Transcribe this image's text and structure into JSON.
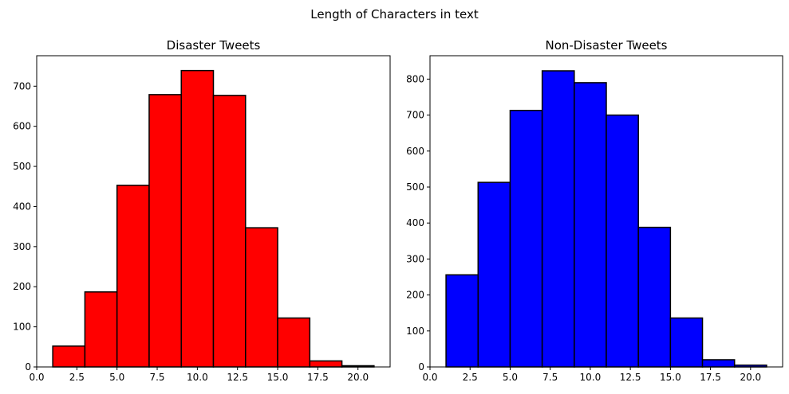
{
  "figure": {
    "suptitle": "Length of Characters in text"
  },
  "chart_data": [
    {
      "type": "bar",
      "title": "Disaster Tweets",
      "xlabel": "",
      "ylabel": "",
      "color": "#ff0000",
      "edgecolor": "#000000",
      "bin_edges": [
        1,
        3,
        5,
        7,
        9,
        11,
        13,
        15,
        17,
        19,
        21
      ],
      "values": [
        52,
        187,
        453,
        679,
        739,
        677,
        347,
        122,
        15,
        3
      ],
      "xlim": [
        0,
        22
      ],
      "ylim": [
        0,
        776
      ],
      "xticks": [
        0.0,
        2.5,
        5.0,
        7.5,
        10.0,
        12.5,
        15.0,
        17.5,
        20.0
      ],
      "xtick_labels": [
        "0.0",
        "2.5",
        "5.0",
        "7.5",
        "10.0",
        "12.5",
        "15.0",
        "17.5",
        "20.0"
      ],
      "yticks": [
        0,
        100,
        200,
        300,
        400,
        500,
        600,
        700
      ],
      "ytick_labels": [
        "0",
        "100",
        "200",
        "300",
        "400",
        "500",
        "600",
        "700"
      ],
      "grid": false
    },
    {
      "type": "bar",
      "title": "Non-Disaster Tweets",
      "xlabel": "",
      "ylabel": "",
      "color": "#0000ff",
      "edgecolor": "#000000",
      "bin_edges": [
        1,
        3,
        5,
        7,
        9,
        11,
        13,
        15,
        17,
        19,
        21
      ],
      "values": [
        256,
        513,
        713,
        823,
        790,
        700,
        388,
        136,
        20,
        5
      ],
      "xlim": [
        0,
        22
      ],
      "ylim": [
        0,
        865
      ],
      "xticks": [
        0.0,
        2.5,
        5.0,
        7.5,
        10.0,
        12.5,
        15.0,
        17.5,
        20.0
      ],
      "xtick_labels": [
        "0.0",
        "2.5",
        "5.0",
        "7.5",
        "10.0",
        "12.5",
        "15.0",
        "17.5",
        "20.0"
      ],
      "yticks": [
        0,
        100,
        200,
        300,
        400,
        500,
        600,
        700,
        800
      ],
      "ytick_labels": [
        "0",
        "100",
        "200",
        "300",
        "400",
        "500",
        "600",
        "700",
        "800"
      ],
      "grid": false
    }
  ]
}
